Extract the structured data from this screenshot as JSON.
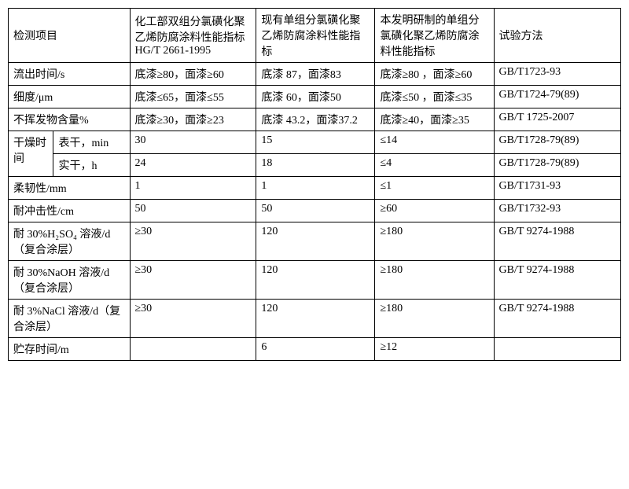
{
  "headers": {
    "c1": "检测项目",
    "c2": "化工部双组分氯磺化聚乙烯防腐涂料性能指标 HG/T 2661-1995",
    "c3": "现有单组分氯磺化聚乙烯防腐涂料性能指标",
    "c4": "本发明研制的单组分氯磺化聚乙烯防腐涂料性能指标",
    "c5": "试验方法"
  },
  "rows": {
    "r1": {
      "c1": "流出时间/s",
      "c2": "底漆≥80，面漆≥60",
      "c3": "底漆 87，面漆83",
      "c4": "底漆≥80 ，面漆≥60",
      "c5": "GB/T1723-93"
    },
    "r2": {
      "c1": "细度/μm",
      "c2": "底漆≤65，面漆≤55",
      "c3": "底漆 60，面漆50",
      "c4": "底漆≤50 ，面漆≤35",
      "c5": "GB/T1724-79(89)"
    },
    "r3": {
      "c1": "不挥发物含量%",
      "c2": "底漆≥30，面漆≥23",
      "c3": "底漆 43.2，面漆37.2",
      "c4": "底漆≥40，面漆≥35",
      "c5": "GB/T 1725-2007"
    },
    "r4": {
      "c1a": "干燥时间",
      "c1b": "表干，min",
      "c2": "30",
      "c3": "15",
      "c4": "≤14",
      "c5": "GB/T1728-79(89)"
    },
    "r5": {
      "c1b": "实干，h",
      "c2": "24",
      "c3": "18",
      "c4": "≤4",
      "c5": "GB/T1728-79(89)"
    },
    "r6": {
      "c1": "柔韧性/mm",
      "c2": "1",
      "c3": "1",
      "c4": "≤1",
      "c5": "GB/T1731-93"
    },
    "r7": {
      "c1": "耐冲击性/cm",
      "c2": "50",
      "c3": "50",
      "c4": "≥60",
      "c5": "GB/T1732-93"
    },
    "r8": {
      "c1": "耐 30%H₂SO₄ 溶液/d（复合涂层）",
      "c2": "≥30",
      "c3": "120",
      "c4": "≥180",
      "c5": "GB/T 9274-1988"
    },
    "r9": {
      "c1": "耐 30%NaOH 溶液/d（复合涂层）",
      "c2": "≥30",
      "c3": "120",
      "c4": "≥180",
      "c5": "GB/T 9274-1988"
    },
    "r10": {
      "c1": "耐 3%NaCl 溶液/d（复合涂层）",
      "c2": "≥30",
      "c3": "120",
      "c4": "≥180",
      "c5": "GB/T 9274-1988"
    },
    "r11": {
      "c1": "贮存时间/m",
      "c2": "",
      "c3": "6",
      "c4": "≥12",
      "c5": ""
    }
  }
}
